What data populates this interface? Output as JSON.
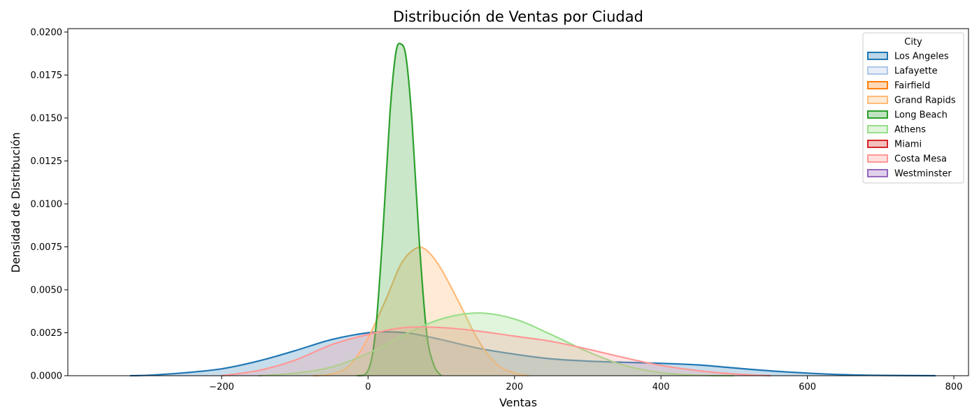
{
  "chart_data": {
    "type": "area",
    "title": "Distribución de Ventas por Ciudad",
    "xlabel": "Ventas",
    "ylabel": "Densidad de Distribución",
    "xlim": [
      -410,
      820
    ],
    "ylim": [
      0,
      0.0202
    ],
    "xticks": [
      -200,
      0,
      200,
      400,
      600,
      800
    ],
    "xtick_labels": [
      "−200",
      "0",
      "200",
      "400",
      "600",
      "800"
    ],
    "yticks": [
      0,
      0.0025,
      0.005,
      0.0075,
      0.01,
      0.0125,
      0.015,
      0.0175,
      0.02
    ],
    "ytick_labels": [
      "0.0000",
      "0.0025",
      "0.0050",
      "0.0075",
      "0.0100",
      "0.0125",
      "0.0150",
      "0.0175",
      "0.0200"
    ],
    "grid": false,
    "legend": {
      "title": "City",
      "placement": "top-right"
    },
    "series": [
      {
        "name": "Los Angeles",
        "color": "#1f77b4",
        "fill_opacity": 0.25,
        "points": [
          [
            -325,
            0
          ],
          [
            -300,
            3e-05
          ],
          [
            -250,
            0.00017
          ],
          [
            -200,
            0.0004
          ],
          [
            -150,
            0.00085
          ],
          [
            -100,
            0.00145
          ],
          [
            -50,
            0.0021
          ],
          [
            0,
            0.0025
          ],
          [
            30,
            0.00255
          ],
          [
            60,
            0.00245
          ],
          [
            100,
            0.0021
          ],
          [
            150,
            0.0016
          ],
          [
            200,
            0.00125
          ],
          [
            250,
            0.00098
          ],
          [
            300,
            0.00085
          ],
          [
            350,
            0.00078
          ],
          [
            400,
            0.00072
          ],
          [
            450,
            0.00063
          ],
          [
            500,
            0.00045
          ],
          [
            550,
            0.00028
          ],
          [
            600,
            0.00015
          ],
          [
            650,
            6e-05
          ],
          [
            700,
            2e-05
          ],
          [
            775,
            0
          ]
        ]
      },
      {
        "name": "Lafayette",
        "color": "#aec7e8",
        "fill_opacity": 0.25,
        "points": []
      },
      {
        "name": "Fairfield",
        "color": "#ff7f0e",
        "fill_opacity": 0.25,
        "points": []
      },
      {
        "name": "Grand Rapids",
        "color": "#ffbb78",
        "fill_opacity": 0.3,
        "points": [
          [
            -75,
            0
          ],
          [
            -50,
            0.0001
          ],
          [
            -25,
            0.0006
          ],
          [
            0,
            0.0022
          ],
          [
            25,
            0.0045
          ],
          [
            45,
            0.0065
          ],
          [
            65,
            0.0074
          ],
          [
            80,
            0.0073
          ],
          [
            100,
            0.0062
          ],
          [
            125,
            0.0042
          ],
          [
            150,
            0.0021
          ],
          [
            175,
            0.0007
          ],
          [
            200,
            0.00015
          ],
          [
            220,
            0
          ]
        ]
      },
      {
        "name": "Long Beach",
        "color": "#2ca02c",
        "fill_opacity": 0.25,
        "points": [
          [
            -15,
            0
          ],
          [
            0,
            0.0003
          ],
          [
            10,
            0.0025
          ],
          [
            20,
            0.0082
          ],
          [
            30,
            0.0153
          ],
          [
            38,
            0.0188
          ],
          [
            45,
            0.0193
          ],
          [
            52,
            0.0185
          ],
          [
            60,
            0.0148
          ],
          [
            70,
            0.0078
          ],
          [
            80,
            0.0025
          ],
          [
            90,
            0.0006
          ],
          [
            100,
            0
          ]
        ]
      },
      {
        "name": "Athens",
        "color": "#98df8a",
        "fill_opacity": 0.3,
        "points": [
          [
            -150,
            0
          ],
          [
            -100,
            0.00015
          ],
          [
            -50,
            0.0005
          ],
          [
            0,
            0.0013
          ],
          [
            50,
            0.0024
          ],
          [
            100,
            0.0033
          ],
          [
            150,
            0.00365
          ],
          [
            200,
            0.0033
          ],
          [
            250,
            0.0024
          ],
          [
            300,
            0.0014
          ],
          [
            350,
            0.0006
          ],
          [
            400,
            0.00018
          ],
          [
            450,
            3e-05
          ],
          [
            500,
            0
          ]
        ]
      },
      {
        "name": "Miami",
        "color": "#d62728",
        "fill_opacity": 0.25,
        "points": []
      },
      {
        "name": "Costa Mesa",
        "color": "#ff9896",
        "fill_opacity": 0.25,
        "points": [
          [
            -200,
            0
          ],
          [
            -150,
            0.0003
          ],
          [
            -100,
            0.0009
          ],
          [
            -50,
            0.0018
          ],
          [
            0,
            0.0024
          ],
          [
            50,
            0.0028
          ],
          [
            100,
            0.0028
          ],
          [
            150,
            0.0026
          ],
          [
            200,
            0.0023
          ],
          [
            250,
            0.002
          ],
          [
            300,
            0.00155
          ],
          [
            350,
            0.00105
          ],
          [
            400,
            0.0006
          ],
          [
            450,
            0.0003
          ],
          [
            500,
            0.0001
          ],
          [
            550,
            0
          ]
        ]
      },
      {
        "name": "Westminster",
        "color": "#9467bd",
        "fill_opacity": 0.25,
        "points": []
      }
    ]
  }
}
